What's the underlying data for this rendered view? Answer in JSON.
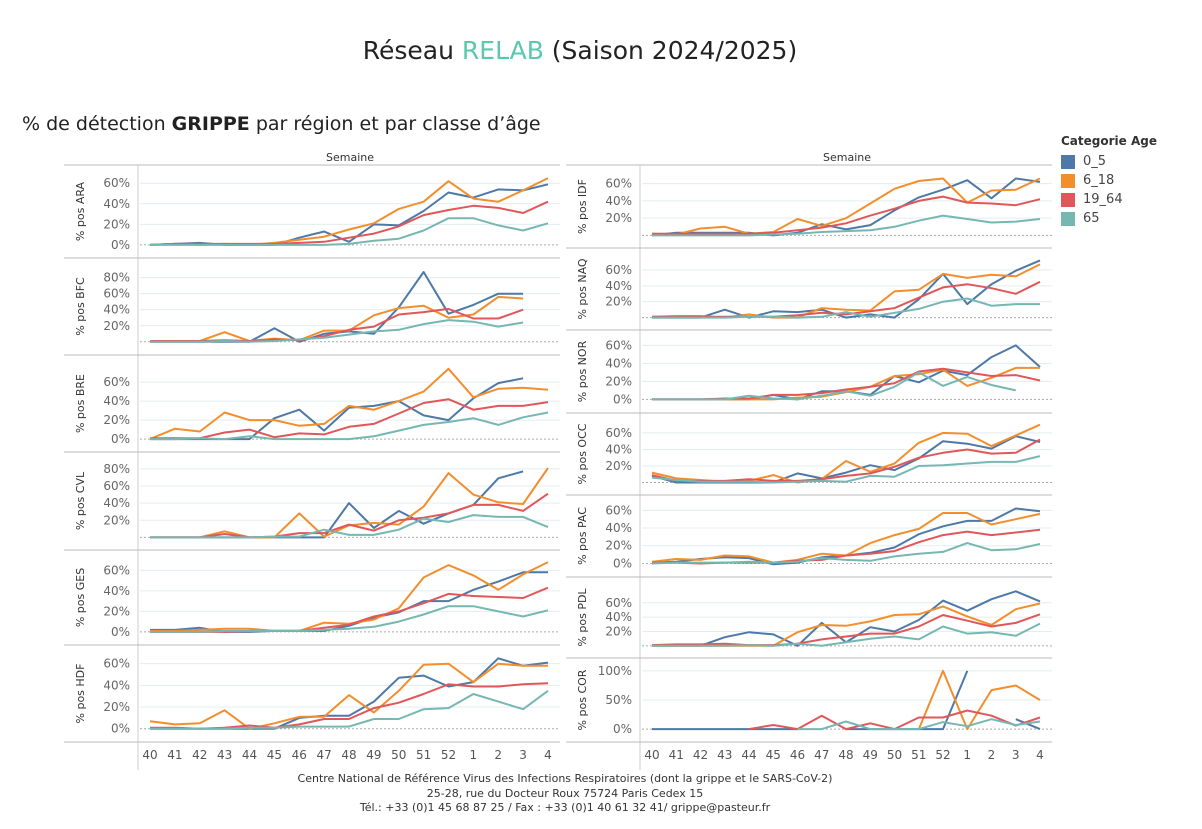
{
  "header": {
    "title_prefix": "Réseau ",
    "title_accent": "RELAB",
    "title_suffix": " (Saison 2024/2025)",
    "subtitle_prefix": "% de détection ",
    "subtitle_bold": "GRIPPE",
    "subtitle_suffix": " par région et par classe d’âge"
  },
  "legend": {
    "title": "Categorie Age",
    "items": [
      {
        "label": "0_5",
        "color": "#4e79a7"
      },
      {
        "label": "6_18",
        "color": "#f28e2b"
      },
      {
        "label": "19_64",
        "color": "#e15759"
      },
      {
        "label": "65",
        "color": "#76b7b2"
      }
    ]
  },
  "footer": {
    "line1": "Centre National de Référence Virus des Infections Respiratoires (dont la grippe et le SARS-CoV-2)",
    "line2": "25-28, rue du Docteur Roux 75724 Paris Cedex 15",
    "line3": "Tél.: +33 (0)1 45 68 87 25 / Fax : +33 (0)1  40 61 32 41/ grippe@pasteur.fr"
  },
  "chart_data": {
    "type": "line",
    "title": "% de détection GRIPPE par région et par classe d’âge",
    "column_header": "Semaine",
    "xlabel": "Semaine",
    "categories": [
      "40",
      "41",
      "42",
      "43",
      "44",
      "45",
      "46",
      "47",
      "48",
      "49",
      "50",
      "51",
      "52",
      "1",
      "2",
      "3",
      "4"
    ],
    "series_names": [
      "0_5",
      "6_18",
      "19_64",
      "65"
    ],
    "panels": [
      {
        "region": "ARA",
        "ylabel": "% pos ARA",
        "yticks": [
          0,
          20,
          40,
          60
        ],
        "ylim": [
          -3,
          68
        ],
        "series": [
          [
            0,
            1,
            2,
            0,
            0,
            0,
            7,
            13,
            3,
            20,
            19,
            33,
            51,
            46,
            54,
            53,
            59
          ],
          [
            0,
            1,
            0,
            1,
            0,
            2,
            5,
            8,
            15,
            21,
            35,
            42,
            62,
            45,
            42,
            53,
            65
          ],
          [
            0,
            1,
            1,
            1,
            1,
            1,
            2,
            3,
            7,
            11,
            18,
            29,
            34,
            38,
            36,
            31,
            42
          ],
          [
            0,
            0,
            0,
            0,
            0,
            0,
            0,
            0,
            1,
            4,
            6,
            14,
            26,
            26,
            19,
            14,
            21
          ]
        ]
      },
      {
        "region": "BFC",
        "ylabel": "% pos BFC",
        "yticks": [
          20,
          40,
          60,
          80
        ],
        "ylim": [
          -4,
          92
        ],
        "series": [
          [
            0,
            0,
            0,
            0,
            0,
            17,
            0,
            10,
            13,
            10,
            43,
            87,
            35,
            46,
            60,
            60,
            null
          ],
          [
            0,
            0,
            1,
            12,
            1,
            4,
            2,
            14,
            14,
            33,
            42,
            45,
            30,
            34,
            56,
            54,
            null
          ],
          [
            1,
            1,
            1,
            2,
            1,
            3,
            2,
            7,
            15,
            19,
            34,
            37,
            41,
            29,
            29,
            40,
            null
          ],
          [
            0,
            0,
            0,
            1,
            0,
            1,
            3,
            5,
            9,
            13,
            15,
            22,
            27,
            25,
            19,
            24,
            null
          ]
        ]
      },
      {
        "region": "BRE",
        "ylabel": "% pos BRE",
        "yticks": [
          0,
          20,
          40,
          60
        ],
        "ylim": [
          -3,
          78
        ],
        "series": [
          [
            0,
            0,
            0,
            0,
            0,
            22,
            31,
            9,
            33,
            35,
            40,
            25,
            20,
            43,
            59,
            64,
            null
          ],
          [
            0,
            11,
            8,
            28,
            20,
            20,
            14,
            16,
            35,
            31,
            40,
            50,
            74,
            44,
            53,
            54,
            52
          ],
          [
            1,
            1,
            1,
            7,
            10,
            2,
            6,
            5,
            13,
            16,
            27,
            38,
            42,
            31,
            35,
            35,
            39
          ],
          [
            0,
            0,
            1,
            0,
            3,
            0,
            0,
            0,
            0,
            3,
            9,
            15,
            18,
            22,
            15,
            23,
            28
          ]
        ]
      },
      {
        "region": "CVL",
        "ylabel": "% pos CVL",
        "yticks": [
          20,
          40,
          60,
          80
        ],
        "ylim": [
          -3,
          88
        ],
        "series": [
          [
            0,
            0,
            0,
            0,
            0,
            0,
            0,
            0,
            40,
            11,
            31,
            16,
            28,
            38,
            69,
            77,
            null
          ],
          [
            0,
            0,
            0,
            7,
            0,
            0,
            28,
            1,
            14,
            17,
            15,
            36,
            75,
            50,
            41,
            39,
            81
          ],
          [
            0,
            0,
            0,
            4,
            0,
            1,
            5,
            5,
            15,
            8,
            20,
            23,
            28,
            38,
            38,
            31,
            51
          ],
          [
            0,
            0,
            0,
            0,
            0,
            1,
            1,
            9,
            3,
            3,
            9,
            22,
            18,
            26,
            24,
            24,
            12
          ]
        ]
      },
      {
        "region": "GES",
        "ylabel": "% pos GES",
        "yticks": [
          0,
          20,
          40,
          60
        ],
        "ylim": [
          -3,
          70
        ],
        "series": [
          [
            2,
            2,
            4,
            0,
            0,
            1,
            1,
            1,
            6,
            14,
            19,
            30,
            30,
            41,
            49,
            58,
            58
          ],
          [
            1,
            1,
            2,
            3,
            3,
            1,
            1,
            9,
            8,
            12,
            23,
            53,
            65,
            55,
            41,
            56,
            68
          ],
          [
            0,
            0,
            0,
            0,
            1,
            1,
            1,
            4,
            7,
            15,
            20,
            28,
            37,
            35,
            34,
            33,
            43
          ],
          [
            0,
            0,
            0,
            1,
            1,
            1,
            1,
            2,
            3,
            5,
            10,
            17,
            25,
            25,
            20,
            15,
            21
          ]
        ]
      },
      {
        "region": "HDF",
        "ylabel": "% pos HDF",
        "yticks": [
          0,
          20,
          40,
          60
        ],
        "ylim": [
          -3,
          68
        ],
        "series": [
          [
            0,
            0,
            0,
            0,
            0,
            0,
            10,
            12,
            12,
            25,
            47,
            49,
            39,
            43,
            65,
            58,
            61
          ],
          [
            7,
            4,
            5,
            17,
            0,
            5,
            11,
            11,
            31,
            15,
            35,
            59,
            60,
            43,
            60,
            58,
            58
          ],
          [
            1,
            1,
            0,
            1,
            3,
            1,
            4,
            9,
            9,
            19,
            24,
            32,
            41,
            39,
            39,
            41,
            42
          ],
          [
            0,
            0,
            0,
            0,
            1,
            1,
            2,
            2,
            2,
            9,
            9,
            18,
            19,
            32,
            25,
            18,
            35
          ]
        ]
      },
      {
        "region": "IDF",
        "ylabel": "% pos IDF",
        "yticks": [
          20,
          40,
          60
        ],
        "ylim": [
          -3,
          70
        ],
        "series": [
          [
            0,
            3,
            3,
            3,
            3,
            0,
            3,
            13,
            7,
            12,
            29,
            44,
            53,
            64,
            43,
            66,
            62
          ],
          [
            2,
            1,
            8,
            10,
            2,
            4,
            19,
            11,
            20,
            37,
            54,
            63,
            66,
            38,
            52,
            53,
            66
          ],
          [
            2,
            2,
            2,
            2,
            2,
            3,
            6,
            9,
            14,
            23,
            31,
            40,
            45,
            38,
            37,
            35,
            42
          ],
          [
            0,
            0,
            0,
            0,
            0,
            1,
            2,
            4,
            5,
            6,
            10,
            17,
            23,
            19,
            15,
            16,
            19
          ]
        ]
      },
      {
        "region": "NAQ",
        "ylabel": "% pos NAQ",
        "yticks": [
          20,
          40,
          60
        ],
        "ylim": [
          -3,
          75
        ],
        "series": [
          [
            0,
            0,
            0,
            10,
            0,
            8,
            7,
            10,
            0,
            4,
            0,
            23,
            55,
            17,
            42,
            59,
            72
          ],
          [
            1,
            2,
            2,
            0,
            4,
            0,
            0,
            12,
            10,
            9,
            33,
            35,
            55,
            50,
            54,
            52,
            67
          ],
          [
            1,
            1,
            1,
            1,
            1,
            1,
            3,
            6,
            4,
            8,
            12,
            25,
            38,
            42,
            37,
            30,
            45
          ],
          [
            0,
            0,
            0,
            0,
            1,
            1,
            0,
            1,
            7,
            1,
            6,
            11,
            20,
            24,
            15,
            17,
            17
          ]
        ]
      },
      {
        "region": "NOR",
        "ylabel": "% pos NOR",
        "yticks": [
          0,
          20,
          40,
          60
        ],
        "ylim": [
          -4,
          66
        ],
        "series": [
          [
            0,
            0,
            0,
            0,
            0,
            5,
            0,
            9,
            9,
            5,
            26,
            19,
            32,
            27,
            47,
            60,
            36
          ],
          [
            0,
            0,
            0,
            0,
            0,
            0,
            2,
            3,
            8,
            14,
            26,
            28,
            33,
            15,
            24,
            35,
            35
          ],
          [
            0,
            0,
            0,
            1,
            1,
            5,
            5,
            7,
            11,
            14,
            18,
            31,
            34,
            30,
            26,
            27,
            21
          ],
          [
            0,
            0,
            0,
            0,
            4,
            1,
            0,
            4,
            9,
            4,
            14,
            30,
            15,
            25,
            16,
            10,
            null
          ]
        ]
      },
      {
        "region": "OCC",
        "ylabel": "% pos OCC",
        "yticks": [
          20,
          40,
          60
        ],
        "ylim": [
          -3,
          72
        ],
        "series": [
          [
            8,
            0,
            0,
            0,
            0,
            0,
            11,
            5,
            12,
            21,
            15,
            29,
            50,
            47,
            41,
            56,
            49
          ],
          [
            12,
            5,
            3,
            1,
            2,
            9,
            0,
            4,
            26,
            13,
            23,
            48,
            60,
            59,
            44,
            57,
            70
          ],
          [
            9,
            2,
            2,
            2,
            4,
            2,
            2,
            4,
            8,
            11,
            19,
            30,
            36,
            40,
            35,
            36,
            52
          ],
          [
            6,
            3,
            1,
            1,
            1,
            0,
            1,
            2,
            1,
            8,
            7,
            20,
            21,
            23,
            25,
            25,
            32
          ]
        ]
      },
      {
        "region": "PAC",
        "ylabel": "% pos PAC",
        "yticks": [
          0,
          20,
          40,
          60
        ],
        "ylim": [
          -4,
          66
        ],
        "series": [
          [
            1,
            2,
            5,
            7,
            6,
            -1,
            1,
            7,
            9,
            12,
            18,
            33,
            42,
            48,
            48,
            62,
            59
          ],
          [
            2,
            5,
            4,
            9,
            8,
            1,
            4,
            11,
            9,
            23,
            32,
            39,
            57,
            57,
            44,
            50,
            56
          ],
          [
            1,
            1,
            0,
            1,
            1,
            1,
            3,
            4,
            9,
            11,
            14,
            24,
            32,
            36,
            32,
            35,
            38
          ],
          [
            0,
            1,
            1,
            1,
            2,
            1,
            2,
            6,
            4,
            3,
            8,
            11,
            13,
            23,
            15,
            16,
            22
          ]
        ]
      },
      {
        "region": "PDL",
        "ylabel": "% pos PDL",
        "yticks": [
          20,
          40,
          60
        ],
        "ylim": [
          -3,
          82
        ],
        "series": [
          [
            0,
            0,
            0,
            12,
            19,
            16,
            0,
            32,
            5,
            26,
            20,
            36,
            63,
            49,
            65,
            76,
            62
          ],
          [
            0,
            0,
            0,
            0,
            0,
            0,
            19,
            29,
            28,
            34,
            43,
            44,
            55,
            41,
            29,
            51,
            59
          ],
          [
            1,
            2,
            2,
            3,
            1,
            1,
            3,
            9,
            13,
            17,
            17,
            27,
            43,
            35,
            27,
            32,
            44
          ],
          [
            0,
            0,
            0,
            0,
            1,
            0,
            3,
            0,
            5,
            10,
            13,
            9,
            27,
            17,
            19,
            14,
            31
          ]
        ]
      },
      {
        "region": "COR",
        "ylabel": "% pos COR",
        "yticks": [
          0,
          50,
          100
        ],
        "ylim": [
          -5,
          105
        ],
        "series": [
          [
            0,
            0,
            0,
            0,
            0,
            0,
            0,
            null,
            0,
            0,
            0,
            0,
            0,
            100,
            null,
            17,
            0
          ],
          [
            null,
            null,
            null,
            null,
            null,
            0,
            null,
            0,
            null,
            0,
            null,
            0,
            100,
            0,
            67,
            75,
            50
          ],
          [
            null,
            null,
            null,
            null,
            0,
            7,
            0,
            23,
            0,
            10,
            0,
            20,
            20,
            32,
            23,
            6,
            20
          ],
          [
            null,
            null,
            null,
            null,
            null,
            null,
            0,
            0,
            13,
            0,
            0,
            0,
            12,
            5,
            17,
            7,
            13
          ]
        ]
      }
    ]
  }
}
